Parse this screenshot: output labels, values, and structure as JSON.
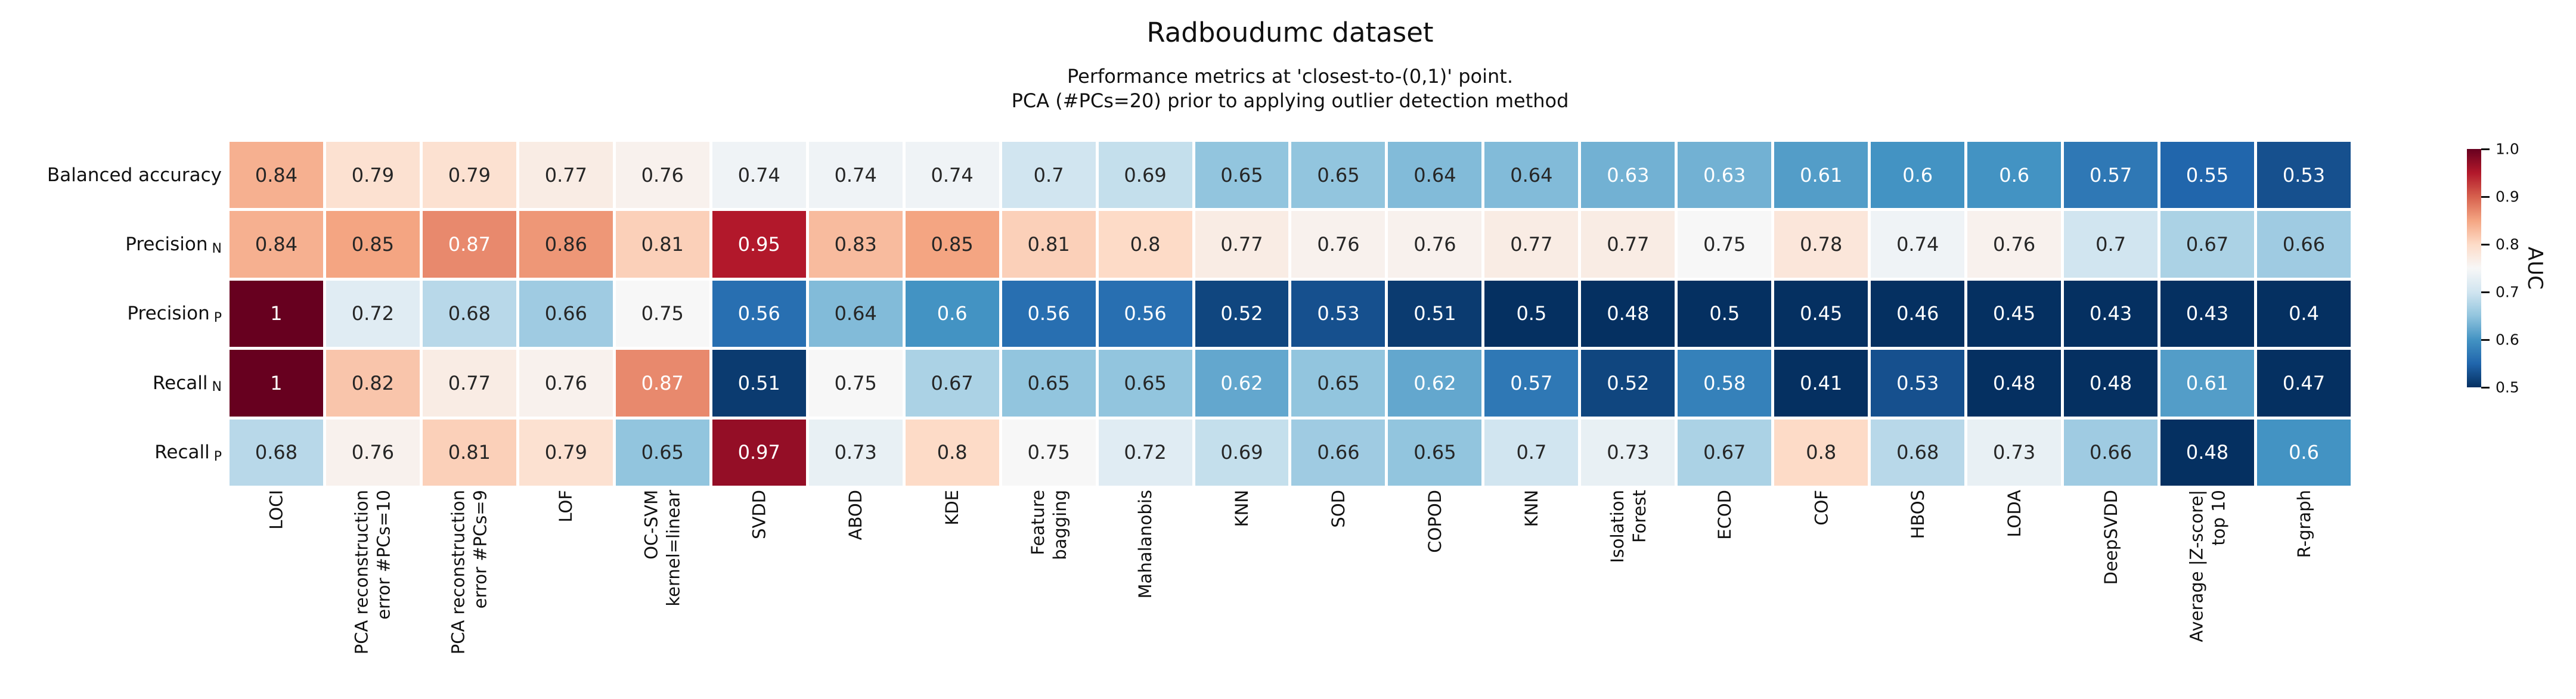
{
  "chart_data": {
    "type": "heatmap",
    "title": "Radboudumc dataset",
    "subtitle": "Performance metrics at 'closest-to-(0,1)' point.\nPCA (#PCs=20) prior to applying outlier detection method",
    "columns": [
      "LOCI",
      "PCA reconstruction\nerror #PCs=10",
      "PCA reconstruction\nerror #PCs=9",
      "LOF",
      "OC-SVM\nkernel=linear",
      "SVDD",
      "ABOD",
      "KDE",
      "Feature\nbagging",
      "Mahalanobis",
      "KNN",
      "SOD",
      "COPOD",
      "KNN",
      "Isolation\nForest",
      "ECOD",
      "COF",
      "HBOS",
      "LODA",
      "DeepSVDD",
      "Average |Z-score|\ntop 10",
      "R-graph"
    ],
    "rows": [
      {
        "label": "Balanced accuracy",
        "sub": ""
      },
      {
        "label": "Precision",
        "sub": "N"
      },
      {
        "label": "Precision",
        "sub": "P"
      },
      {
        "label": "Recall",
        "sub": "N"
      },
      {
        "label": "Recall",
        "sub": "P"
      }
    ],
    "values": [
      [
        0.84,
        0.79,
        0.79,
        0.77,
        0.76,
        0.74,
        0.74,
        0.74,
        0.7,
        0.69,
        0.65,
        0.65,
        0.64,
        0.64,
        0.63,
        0.63,
        0.61,
        0.6,
        0.6,
        0.57,
        0.55,
        0.53
      ],
      [
        0.84,
        0.85,
        0.87,
        0.86,
        0.81,
        0.95,
        0.83,
        0.85,
        0.81,
        0.8,
        0.77,
        0.76,
        0.76,
        0.77,
        0.77,
        0.75,
        0.78,
        0.74,
        0.76,
        0.7,
        0.67,
        0.66
      ],
      [
        1,
        0.72,
        0.68,
        0.66,
        0.75,
        0.56,
        0.64,
        0.6,
        0.56,
        0.56,
        0.52,
        0.53,
        0.51,
        0.5,
        0.48,
        0.5,
        0.45,
        0.46,
        0.45,
        0.43,
        0.43,
        0.4
      ],
      [
        1,
        0.82,
        0.77,
        0.76,
        0.87,
        0.51,
        0.75,
        0.67,
        0.65,
        0.65,
        0.62,
        0.65,
        0.62,
        0.57,
        0.52,
        0.58,
        0.41,
        0.53,
        0.48,
        0.48,
        0.61,
        0.47
      ],
      [
        0.68,
        0.76,
        0.81,
        0.79,
        0.65,
        0.97,
        0.73,
        0.8,
        0.75,
        0.72,
        0.69,
        0.66,
        0.65,
        0.7,
        0.73,
        0.67,
        0.8,
        0.68,
        0.73,
        0.66,
        0.48,
        0.6
      ]
    ],
    "colorbar": {
      "label": "AUC",
      "ticks": [
        "1.0",
        "0.9",
        "0.8",
        "0.7",
        "0.6",
        "0.5"
      ],
      "vmin": 0.5,
      "vmax": 1.0,
      "colormap": "RdBu_r",
      "anchors": [
        "#053061",
        "#2166ac",
        "#4393c3",
        "#92c5de",
        "#d1e5f0",
        "#f7f7f7",
        "#fddbc7",
        "#f4a582",
        "#d6604d",
        "#b2182b",
        "#67001f"
      ]
    },
    "annotation_text_colors": {
      "light": "#ffffff",
      "dark": "#262626"
    },
    "legend_position": "right",
    "grid": false
  }
}
